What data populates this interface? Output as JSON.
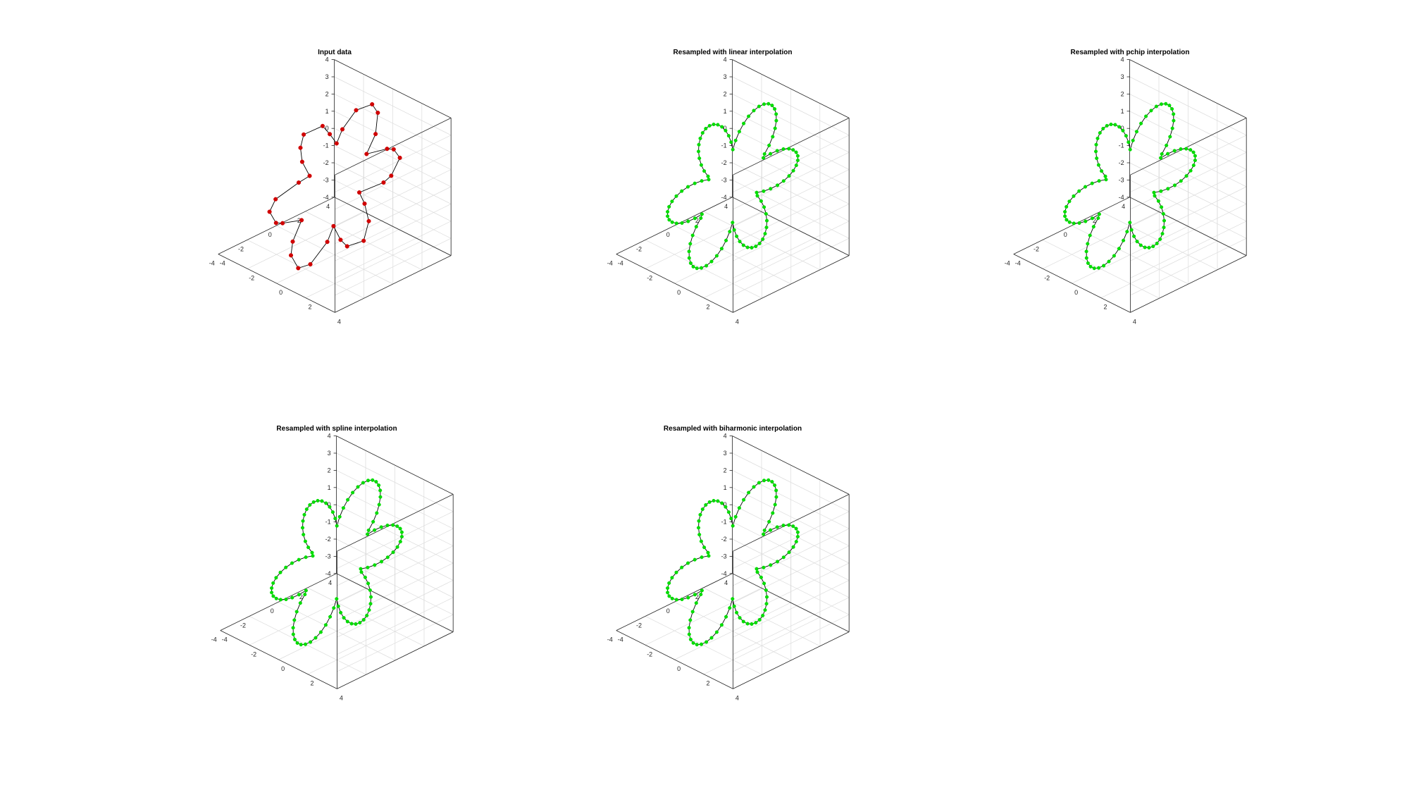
{
  "figure": {
    "background": "#ffffff"
  },
  "chart_data": [
    {
      "type": "line3d",
      "title": "Input data",
      "marker_color": "#d00000",
      "line_color": "#000000",
      "xlim": [
        -4,
        4
      ],
      "ylim": [
        -4,
        4
      ],
      "zlim": [
        -4,
        4
      ],
      "xticks": [
        "-4",
        "-2",
        "0",
        "2",
        "4"
      ],
      "yticks": [
        "-4",
        "-2",
        "0",
        "2",
        "4"
      ],
      "zticks": [
        "-4",
        "-3",
        "-2",
        "-1",
        "0",
        "1",
        "2",
        "3",
        "4"
      ],
      "grid": true,
      "series": [
        {
          "curve": "six-petal flower, r = 2 + 2.5*|cos(3t)|",
          "samples": 36,
          "irregular": true
        }
      ]
    },
    {
      "type": "line3d",
      "title": "Resampled with linear interpolation",
      "marker_color": "#00dd00",
      "line_color": "#000000",
      "xlim": [
        -4,
        4
      ],
      "ylim": [
        -4,
        4
      ],
      "zlim": [
        -4,
        4
      ],
      "xticks": [
        "-4",
        "-2",
        "0",
        "2",
        "4"
      ],
      "yticks": [
        "-4",
        "-2",
        "0",
        "2",
        "4"
      ],
      "zticks": [
        "-4",
        "-3",
        "-2",
        "-1",
        "0",
        "1",
        "2",
        "3",
        "4"
      ],
      "grid": true,
      "series": [
        {
          "curve": "six-petal flower, r = 2 + 2.5*|cos(3t)|",
          "samples": 100,
          "interpolation": "linear"
        }
      ]
    },
    {
      "type": "line3d",
      "title": "Resampled with pchip interpolation",
      "marker_color": "#00dd00",
      "line_color": "#000000",
      "xlim": [
        -4,
        4
      ],
      "ylim": [
        -4,
        4
      ],
      "zlim": [
        -4,
        4
      ],
      "xticks": [
        "-4",
        "-2",
        "0",
        "2",
        "4"
      ],
      "yticks": [
        "-4",
        "-2",
        "0",
        "2",
        "4"
      ],
      "zticks": [
        "-4",
        "-3",
        "-2",
        "-1",
        "0",
        "1",
        "2",
        "3",
        "4"
      ],
      "grid": true,
      "series": [
        {
          "curve": "six-petal flower, r = 2 + 2.5*|cos(3t)|",
          "samples": 100,
          "interpolation": "pchip"
        }
      ]
    },
    {
      "type": "line3d",
      "title": "Resampled with spline interpolation",
      "marker_color": "#00dd00",
      "line_color": "#000000",
      "xlim": [
        -4,
        4
      ],
      "ylim": [
        -4,
        4
      ],
      "zlim": [
        -4,
        4
      ],
      "xticks": [
        "-4",
        "-2",
        "0",
        "2",
        "4"
      ],
      "yticks": [
        "-4",
        "-2",
        "0",
        "2",
        "4"
      ],
      "zticks": [
        "-4",
        "-3",
        "-2",
        "-1",
        "0",
        "1",
        "2",
        "3",
        "4"
      ],
      "grid": true,
      "series": [
        {
          "curve": "six-petal flower, r = 2 + 2.5*|cos(3t)|",
          "samples": 100,
          "interpolation": "spline"
        }
      ]
    },
    {
      "type": "line3d",
      "title": "Resampled with biharmonic interpolation",
      "marker_color": "#00dd00",
      "line_color": "#000000",
      "xlim": [
        -4,
        4
      ],
      "ylim": [
        -4,
        4
      ],
      "zlim": [
        -4,
        4
      ],
      "xticks": [
        "-4",
        "-2",
        "0",
        "2",
        "4"
      ],
      "yticks": [
        "-4",
        "-2",
        "0",
        "2",
        "4"
      ],
      "zticks": [
        "-4",
        "-3",
        "-2",
        "-1",
        "0",
        "1",
        "2",
        "3",
        "4"
      ],
      "grid": true,
      "series": [
        {
          "curve": "six-petal flower, r = 2 + 2.5*|cos(3t)|",
          "samples": 100,
          "interpolation": "biharmonic"
        }
      ]
    }
  ]
}
